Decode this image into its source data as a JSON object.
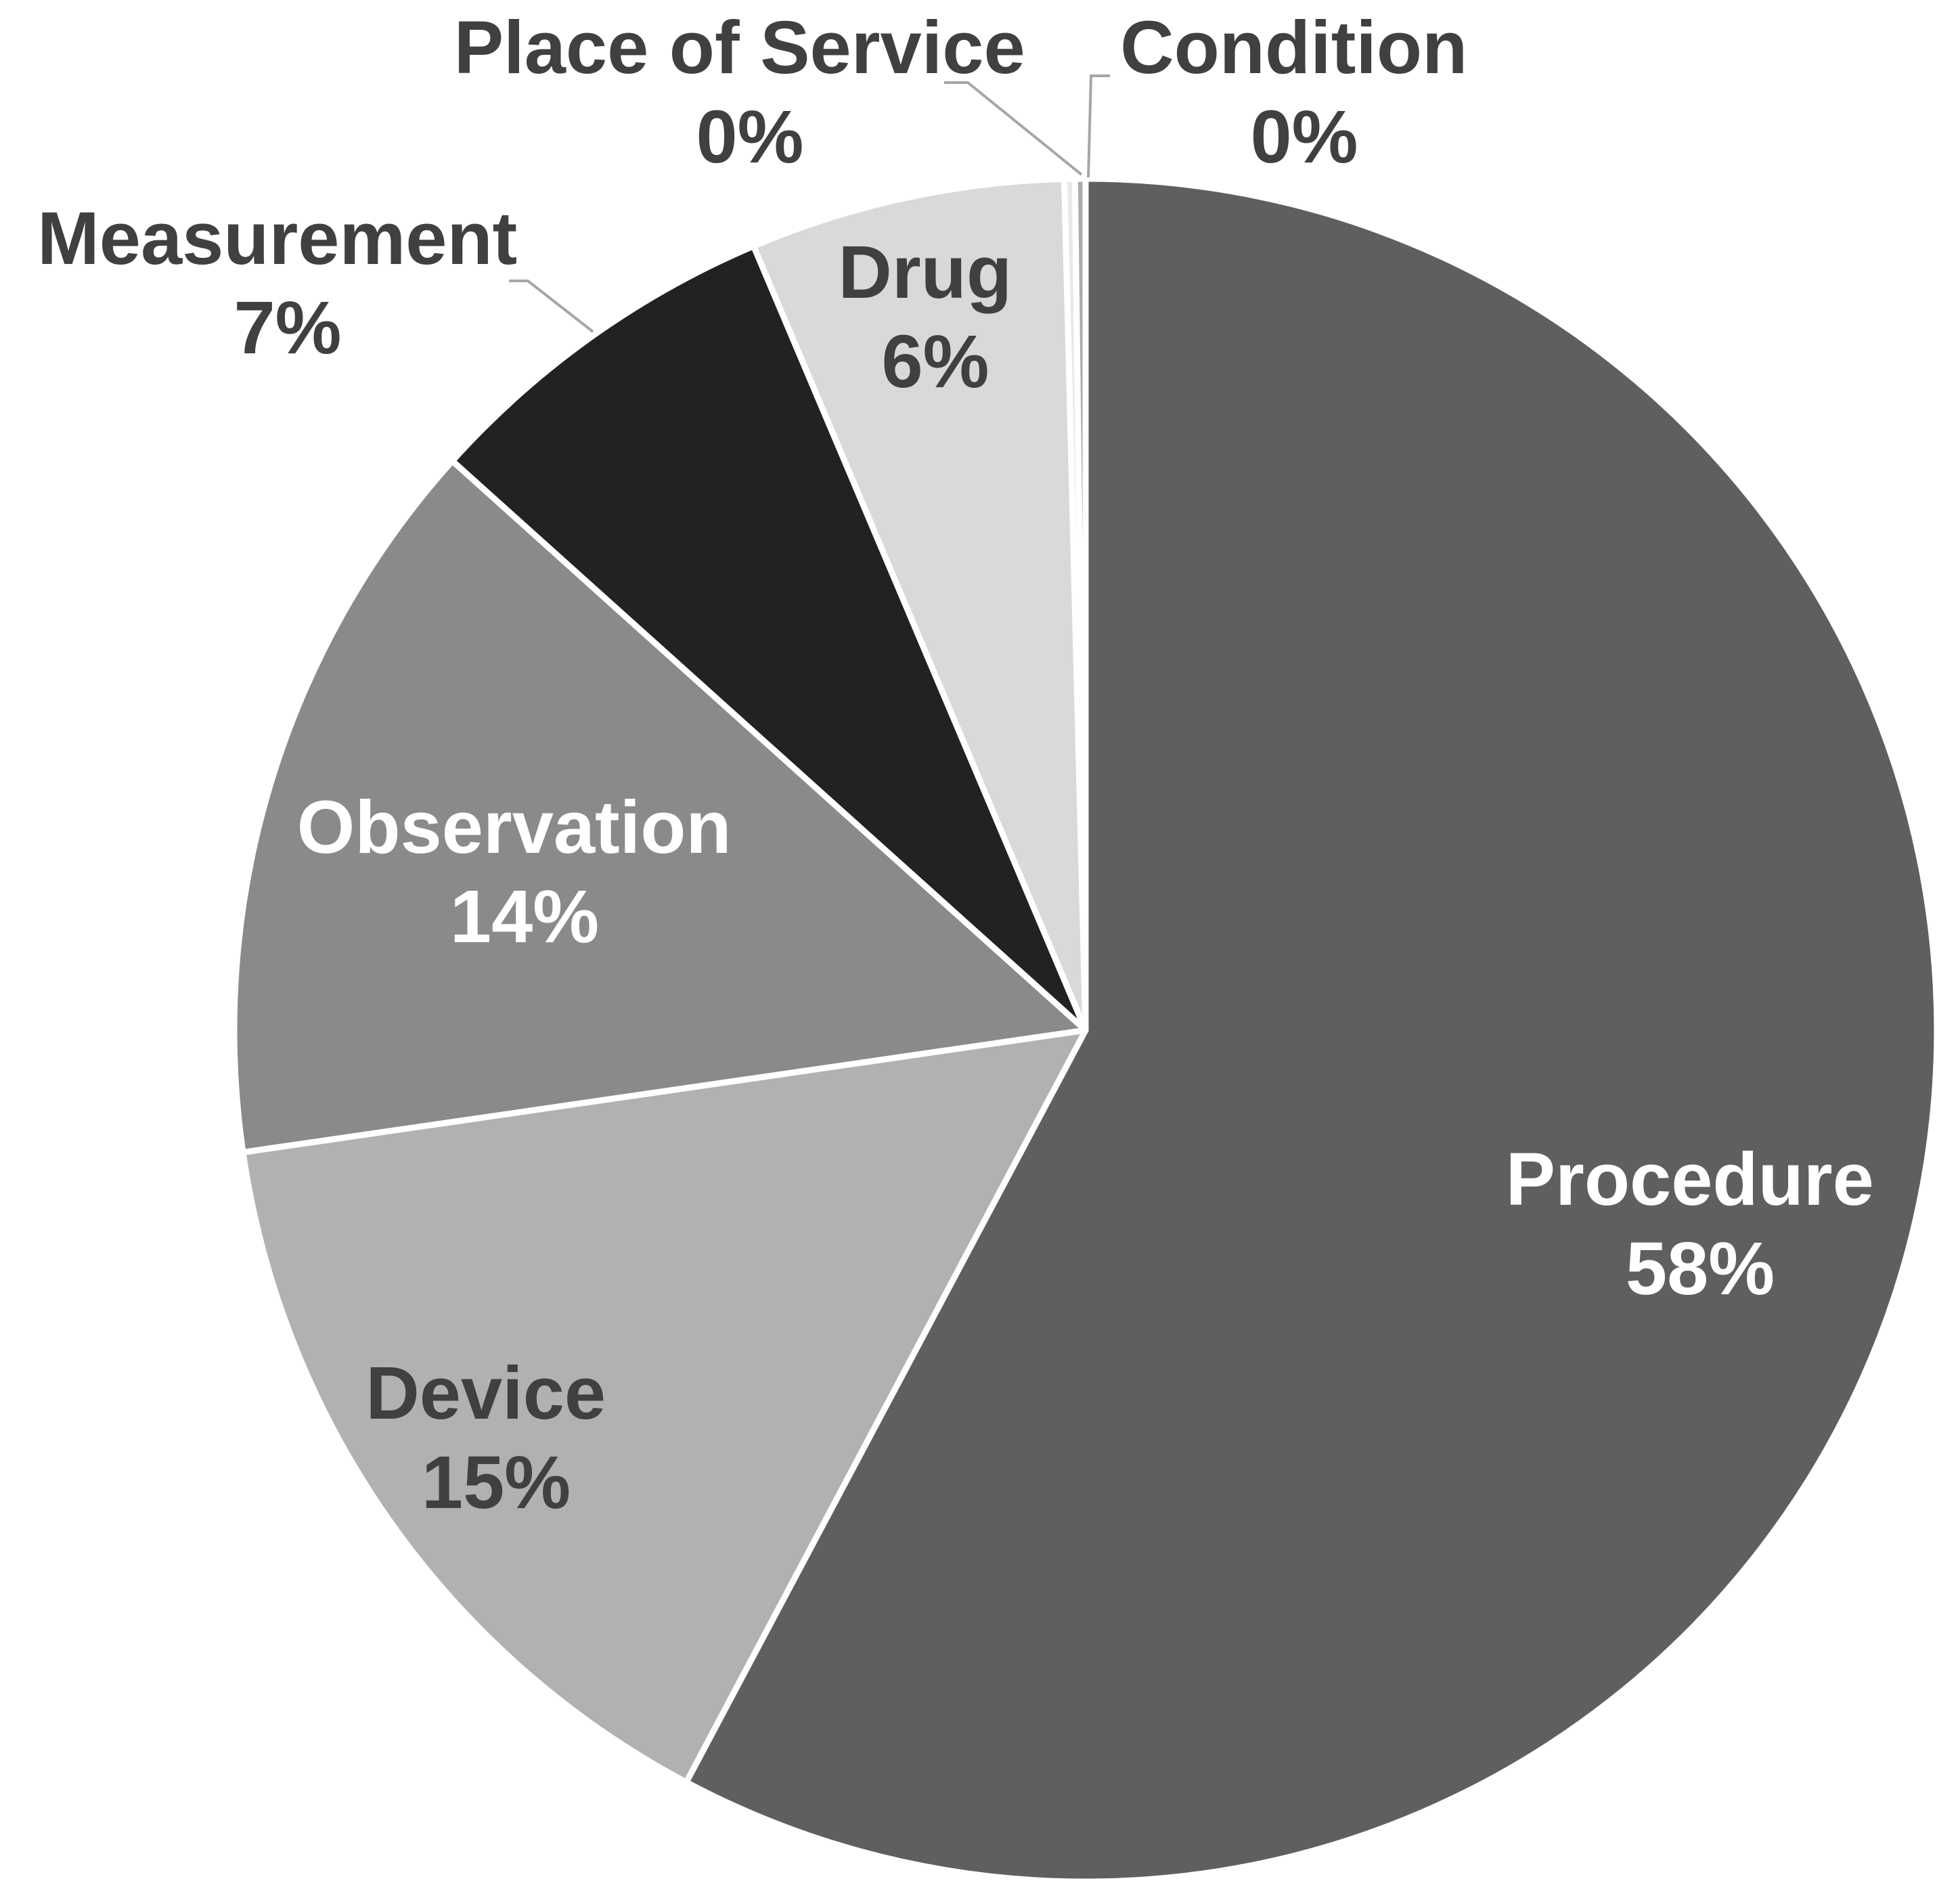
{
  "chart_data": {
    "type": "pie",
    "slices": [
      {
        "name": "Procedure",
        "value": 58,
        "label": "58%",
        "color": "#5f5f5f",
        "text_color": "#ffffff"
      },
      {
        "name": "Device",
        "value": 15,
        "label": "15%",
        "color": "#b1b1b1",
        "text_color": "#404040"
      },
      {
        "name": "Observation",
        "value": 14,
        "label": "14%",
        "color": "#8a8a8a",
        "text_color": "#ffffff"
      },
      {
        "name": "Measurement",
        "value": 7,
        "label": "7%",
        "color": "#222222",
        "text_color": "#404040"
      },
      {
        "name": "Drug",
        "value": 6,
        "label": "6%",
        "color": "#d9d9d9",
        "text_color": "#404040"
      },
      {
        "name": "Place of Service",
        "value": 0.2,
        "label": "0%",
        "color": "#e9e9e9",
        "text_color": "#404040"
      },
      {
        "name": "Condition",
        "value": 0.2,
        "label": "0%",
        "color": "#ababab",
        "text_color": "#404040"
      }
    ],
    "start_angle": "12 o'clock",
    "direction": "clockwise",
    "legend": "none"
  }
}
